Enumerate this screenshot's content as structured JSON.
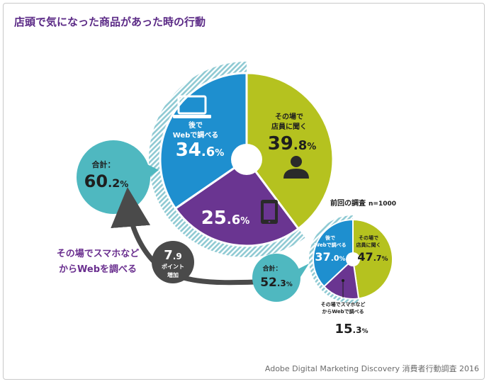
{
  "header": {
    "title": "店頭で気になった商品があった時の行動"
  },
  "chart_data": [
    {
      "type": "pie",
      "name": "current",
      "slices": [
        {
          "label_line1": "その場で",
          "label_line2": "店員に聞く",
          "value": 39.8,
          "int": "39",
          "dec": ".8",
          "unit": "%",
          "color": "#b5c21f"
        },
        {
          "label_line1": "",
          "label_line2": "",
          "value": 25.6,
          "int": "25",
          "dec": ".6",
          "unit": "%",
          "color": "#6a3591"
        },
        {
          "label_line1": "後で",
          "label_line2": "Webで調べる",
          "value": 34.6,
          "int": "34",
          "dec": ".6",
          "unit": "%",
          "color": "#1e8fcf"
        }
      ],
      "total_label": "合計：",
      "total_int": "60",
      "total_dec": ".2",
      "total_unit": "%"
    },
    {
      "type": "pie",
      "name": "previous",
      "title": "前回の調査",
      "n_label": "n=1000",
      "slices": [
        {
          "label_line1": "その場で",
          "label_line2": "店員に聞く",
          "value": 47.7,
          "int": "47",
          "dec": ".7",
          "unit": "%",
          "color": "#b5c21f"
        },
        {
          "label_line1": "その場でスマホなど",
          "label_line2": "からWebで調べる",
          "value": 15.3,
          "int": "15",
          "dec": ".3",
          "unit": "%",
          "color": "#6a3591"
        },
        {
          "label_line1": "後で",
          "label_line2": "Webで調べる",
          "value": 37.0,
          "int": "37",
          "dec": ".0",
          "unit": "%",
          "color": "#1e8fcf"
        }
      ],
      "total_label": "合計：",
      "total_int": "52",
      "total_dec": ".3",
      "total_unit": "%"
    }
  ],
  "increase": {
    "value_int": "7",
    "value_dec": ".9",
    "line1": "ポイント",
    "line2": "増加"
  },
  "annotation": {
    "line1": "その場でスマホなど",
    "line2": "からWebを調べる"
  },
  "source": "Adobe Digital Marketing Discovery 消費者行動調査 2016",
  "colors": {
    "teal": "#4fb8c0",
    "dark_gray": "#4a4a4a",
    "hatch": "#8fcad3"
  },
  "icons": {
    "laptop": "laptop-icon",
    "person": "person-icon",
    "tablet": "tablet-icon"
  }
}
